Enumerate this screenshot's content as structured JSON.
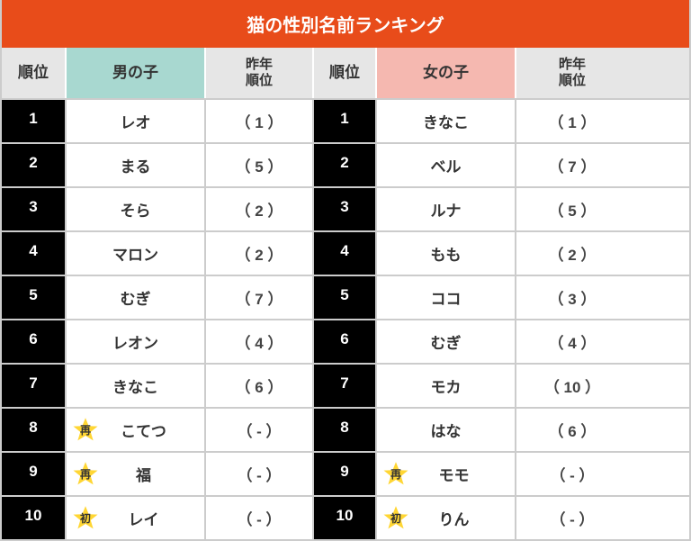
{
  "colors": {
    "title_bg": "#e84c1a",
    "headers_bg": "#e6e6e6",
    "boy_bg": "#a8d8d0",
    "girl_bg": "#f5b8b0",
    "rank_bg": "#000000",
    "star_fill": "#ffd633"
  },
  "title": "猫の性別名前ランキング",
  "columns": {
    "rank": "順位",
    "boy": "男の子",
    "prev": "昨年\n順位",
    "girl": "女の子"
  },
  "badges": {
    "re": "再",
    "new": "初"
  },
  "rows": [
    {
      "r": "1",
      "bn": "レオ",
      "bb": "",
      "bp": "（ 1 ）",
      "gn": "きなこ",
      "gb": "",
      "gp": "（ 1 ）"
    },
    {
      "r": "2",
      "bn": "まる",
      "bb": "",
      "bp": "（ 5 ）",
      "gn": "ベル",
      "gb": "",
      "gp": "（ 7 ）"
    },
    {
      "r": "3",
      "bn": "そら",
      "bb": "",
      "bp": "（ 2 ）",
      "gn": "ルナ",
      "gb": "",
      "gp": "（ 5 ）"
    },
    {
      "r": "4",
      "bn": "マロン",
      "bb": "",
      "bp": "（ 2 ）",
      "gn": "もも",
      "gb": "",
      "gp": "（ 2 ）"
    },
    {
      "r": "5",
      "bn": "むぎ",
      "bb": "",
      "bp": "（ 7 ）",
      "gn": "ココ",
      "gb": "",
      "gp": "（ 3 ）"
    },
    {
      "r": "6",
      "bn": "レオン",
      "bb": "",
      "bp": "（ 4 ）",
      "gn": "むぎ",
      "gb": "",
      "gp": "（ 4 ）"
    },
    {
      "r": "7",
      "bn": "きなこ",
      "bb": "",
      "bp": "（ 6 ）",
      "gn": "モカ",
      "gb": "",
      "gp": "（ 10 ）"
    },
    {
      "r": "8",
      "bn": "こてつ",
      "bb": "re",
      "bp": "（ - ）",
      "gn": "はな",
      "gb": "",
      "gp": "（ 6 ）"
    },
    {
      "r": "9",
      "bn": "福",
      "bb": "re",
      "bp": "（ - ）",
      "gn": "モモ",
      "gb": "re",
      "gp": "（ - ）"
    },
    {
      "r": "10",
      "bn": "レイ",
      "bb": "new",
      "bp": "（ - ）",
      "gn": "りん",
      "gb": "new",
      "gp": "（ - ）"
    }
  ]
}
